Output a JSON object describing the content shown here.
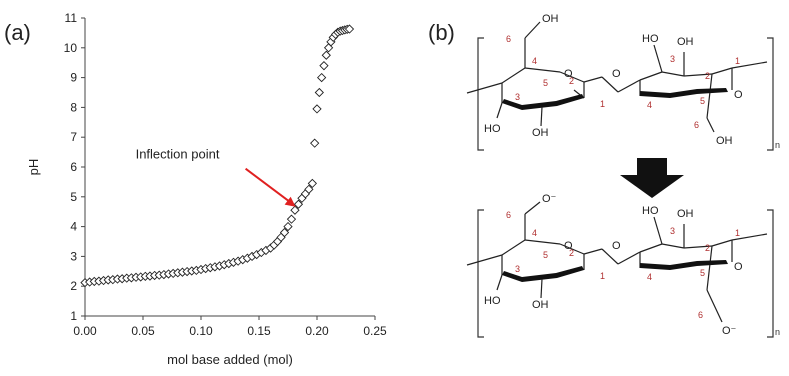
{
  "figure": {
    "panel_a_label": "(a)",
    "panel_b_label": "(b)"
  },
  "chart_data": {
    "type": "scatter",
    "xlabel": "mol base added (mol)",
    "ylabel": "pH",
    "xlim": [
      0.0,
      0.25
    ],
    "ylim": [
      1,
      11
    ],
    "xticks": [
      "0.00",
      "0.05",
      "0.10",
      "0.15",
      "0.20",
      "0.25"
    ],
    "yticks": [
      "1",
      "2",
      "3",
      "4",
      "5",
      "6",
      "7",
      "8",
      "9",
      "10",
      "11"
    ],
    "grid": false,
    "legend": "none",
    "marker": "diamond-open",
    "annotation": {
      "text": "Inflection point",
      "x": 0.185,
      "y": 4.6,
      "arrow_color": "#e02020"
    },
    "points": {
      "x": [
        0.0,
        0.004,
        0.008,
        0.012,
        0.016,
        0.02,
        0.024,
        0.028,
        0.032,
        0.036,
        0.04,
        0.044,
        0.048,
        0.052,
        0.056,
        0.06,
        0.064,
        0.068,
        0.072,
        0.076,
        0.08,
        0.084,
        0.088,
        0.092,
        0.096,
        0.1,
        0.104,
        0.108,
        0.112,
        0.116,
        0.12,
        0.124,
        0.128,
        0.132,
        0.136,
        0.14,
        0.144,
        0.148,
        0.152,
        0.156,
        0.16,
        0.163,
        0.166,
        0.169,
        0.172,
        0.175,
        0.178,
        0.181,
        0.184,
        0.187,
        0.19,
        0.193,
        0.196,
        0.198,
        0.2,
        0.202,
        0.204,
        0.206,
        0.208,
        0.21,
        0.212,
        0.214,
        0.216,
        0.218,
        0.22,
        0.222,
        0.224,
        0.226,
        0.228
      ],
      "y": [
        2.12,
        2.14,
        2.16,
        2.17,
        2.19,
        2.21,
        2.22,
        2.24,
        2.25,
        2.27,
        2.28,
        2.3,
        2.31,
        2.33,
        2.34,
        2.36,
        2.37,
        2.39,
        2.41,
        2.43,
        2.45,
        2.47,
        2.49,
        2.51,
        2.53,
        2.56,
        2.59,
        2.62,
        2.65,
        2.68,
        2.72,
        2.76,
        2.8,
        2.84,
        2.89,
        2.94,
        3.0,
        3.06,
        3.13,
        3.2,
        3.28,
        3.38,
        3.5,
        3.64,
        3.8,
        4.0,
        4.25,
        4.55,
        4.75,
        4.95,
        5.1,
        5.25,
        5.45,
        6.8,
        7.95,
        8.5,
        9.0,
        9.4,
        9.75,
        10.0,
        10.2,
        10.35,
        10.45,
        10.52,
        10.56,
        10.58,
        10.6,
        10.62,
        10.63
      ]
    }
  },
  "diagram": {
    "subscript_n": "n",
    "top": {
      "oh_top_ch2": "OH",
      "ho_top_left": "HO",
      "oh_top_right": "OH",
      "ho_bottom_left": "HO",
      "oh_bottom_mid": "OH",
      "oh_bottom_ch2": "OH"
    },
    "bottom": {
      "o_top_ch2": "O⁻",
      "ho_top_left": "HO",
      "oh_top_right": "OH",
      "ho_bottom_left": "HO",
      "oh_bottom_mid": "OH",
      "o_bottom_ch2": "O⁻"
    },
    "ring_oxygen": "O",
    "bridge_oxygen": "O",
    "carbon_numbers": [
      "1",
      "2",
      "3",
      "4",
      "5",
      "6"
    ]
  }
}
